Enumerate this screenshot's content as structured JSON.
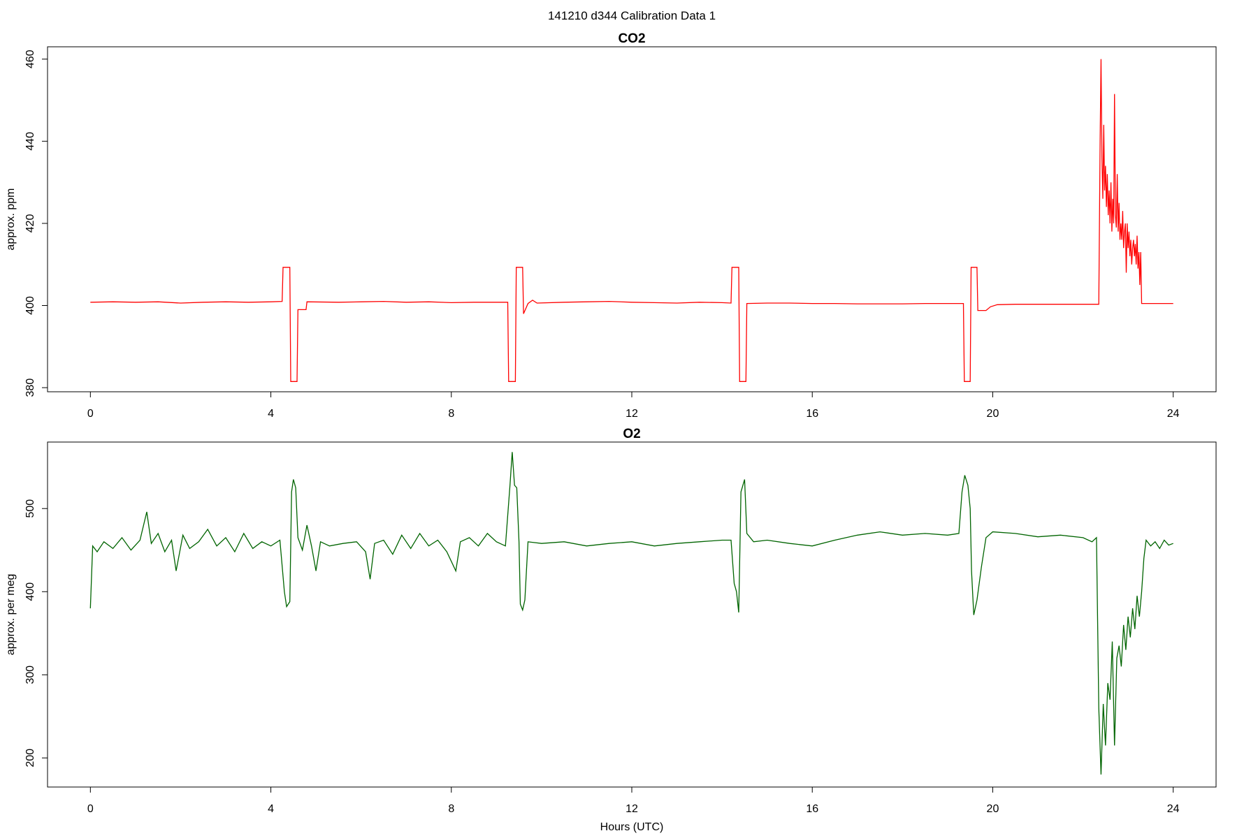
{
  "figure": {
    "suptitle": "141210   d344   Calibration Data 1"
  },
  "chart_data": [
    {
      "type": "line",
      "title": "CO2",
      "xlabel": "",
      "ylabel": "approx. ppm",
      "xlim": [
        -0.95,
        24.95
      ],
      "ylim": [
        379,
        463
      ],
      "xticks": [
        0,
        4,
        8,
        12,
        16,
        20,
        24
      ],
      "yticks": [
        380,
        400,
        420,
        440,
        460
      ],
      "grid": false,
      "color": "#ff0000",
      "series": [
        {
          "points": [
            [
              0.0,
              400.8
            ],
            [
              0.5,
              400.9
            ],
            [
              1.0,
              400.8
            ],
            [
              1.5,
              400.9
            ],
            [
              2.0,
              400.6
            ],
            [
              2.5,
              400.8
            ],
            [
              3.0,
              400.9
            ],
            [
              3.5,
              400.8
            ],
            [
              4.0,
              400.9
            ],
            [
              4.25,
              401.0
            ],
            [
              4.27,
              409.3
            ],
            [
              4.42,
              409.3
            ],
            [
              4.44,
              381.5
            ],
            [
              4.58,
              381.5
            ],
            [
              4.6,
              399.0
            ],
            [
              4.78,
              399.0
            ],
            [
              4.8,
              400.9
            ],
            [
              5.5,
              400.8
            ],
            [
              6.0,
              400.9
            ],
            [
              6.5,
              401.0
            ],
            [
              7.0,
              400.8
            ],
            [
              7.5,
              400.9
            ],
            [
              8.0,
              400.7
            ],
            [
              8.5,
              400.8
            ],
            [
              9.0,
              400.8
            ],
            [
              9.25,
              400.8
            ],
            [
              9.27,
              381.5
            ],
            [
              9.42,
              381.5
            ],
            [
              9.44,
              409.3
            ],
            [
              9.58,
              409.3
            ],
            [
              9.6,
              398.0
            ],
            [
              9.7,
              400.5
            ],
            [
              9.8,
              401.3
            ],
            [
              9.9,
              400.6
            ],
            [
              10.5,
              400.8
            ],
            [
              11.0,
              400.9
            ],
            [
              11.5,
              401.0
            ],
            [
              12.0,
              400.8
            ],
            [
              12.5,
              400.7
            ],
            [
              13.0,
              400.6
            ],
            [
              13.5,
              400.8
            ],
            [
              14.0,
              400.7
            ],
            [
              14.2,
              400.6
            ],
            [
              14.22,
              409.3
            ],
            [
              14.37,
              409.3
            ],
            [
              14.39,
              381.5
            ],
            [
              14.53,
              381.5
            ],
            [
              14.55,
              400.5
            ],
            [
              15.0,
              400.6
            ],
            [
              15.5,
              400.6
            ],
            [
              16.0,
              400.5
            ],
            [
              16.5,
              400.5
            ],
            [
              17.0,
              400.4
            ],
            [
              17.5,
              400.4
            ],
            [
              18.0,
              400.4
            ],
            [
              18.5,
              400.5
            ],
            [
              19.0,
              400.5
            ],
            [
              19.35,
              400.5
            ],
            [
              19.37,
              381.5
            ],
            [
              19.5,
              381.5
            ],
            [
              19.52,
              409.3
            ],
            [
              19.65,
              409.3
            ],
            [
              19.67,
              398.8
            ],
            [
              19.85,
              398.8
            ],
            [
              19.95,
              399.7
            ],
            [
              20.1,
              400.2
            ],
            [
              20.5,
              400.3
            ],
            [
              21.0,
              400.3
            ],
            [
              21.5,
              400.3
            ],
            [
              22.0,
              400.3
            ],
            [
              22.35,
              400.3
            ],
            [
              22.38,
              440.0
            ],
            [
              22.4,
              460.0
            ],
            [
              22.42,
              436.0
            ],
            [
              22.44,
              426.0
            ],
            [
              22.46,
              444.0
            ],
            [
              22.48,
              428.0
            ],
            [
              22.5,
              434.0
            ],
            [
              22.52,
              424.0
            ],
            [
              22.54,
              432.0
            ],
            [
              22.56,
              422.0
            ],
            [
              22.58,
              428.0
            ],
            [
              22.6,
              420.0
            ],
            [
              22.62,
              430.0
            ],
            [
              22.64,
              418.0
            ],
            [
              22.66,
              426.0
            ],
            [
              22.68,
              420.0
            ],
            [
              22.7,
              451.5
            ],
            [
              22.72,
              422.0
            ],
            [
              22.74,
              419.0
            ],
            [
              22.76,
              432.0
            ],
            [
              22.78,
              418.0
            ],
            [
              22.8,
              425.0
            ],
            [
              22.82,
              416.0
            ],
            [
              22.84,
              420.0
            ],
            [
              22.86,
              416.0
            ],
            [
              22.88,
              423.0
            ],
            [
              22.9,
              414.0
            ],
            [
              22.92,
              418.0
            ],
            [
              22.94,
              420.0
            ],
            [
              22.96,
              408.0
            ],
            [
              22.98,
              420.0
            ],
            [
              23.0,
              414.0
            ],
            [
              23.02,
              418.0
            ],
            [
              23.04,
              412.0
            ],
            [
              23.06,
              416.0
            ],
            [
              23.08,
              410.0
            ],
            [
              23.1,
              414.0
            ],
            [
              23.12,
              416.0
            ],
            [
              23.14,
              412.0
            ],
            [
              23.16,
              415.0
            ],
            [
              23.18,
              410.0
            ],
            [
              23.2,
              417.0
            ],
            [
              23.22,
              409.0
            ],
            [
              23.24,
              413.0
            ],
            [
              23.26,
              405.0
            ],
            [
              23.28,
              413.0
            ],
            [
              23.3,
              400.5
            ],
            [
              23.5,
              400.5
            ],
            [
              24.0,
              400.5
            ]
          ]
        }
      ]
    },
    {
      "type": "line",
      "title": "O2",
      "xlabel": "Hours (UTC)",
      "ylabel": "approx. per meg",
      "xlim": [
        -0.95,
        24.95
      ],
      "ylim": [
        165,
        580
      ],
      "xticks": [
        0,
        4,
        8,
        12,
        16,
        20,
        24
      ],
      "yticks": [
        200,
        300,
        400,
        500
      ],
      "grid": false,
      "color": "#006400",
      "series": [
        {
          "points": [
            [
              0.0,
              380
            ],
            [
              0.05,
              455
            ],
            [
              0.15,
              448
            ],
            [
              0.3,
              460
            ],
            [
              0.5,
              452
            ],
            [
              0.7,
              465
            ],
            [
              0.9,
              450
            ],
            [
              1.1,
              462
            ],
            [
              1.25,
              496
            ],
            [
              1.35,
              458
            ],
            [
              1.5,
              470
            ],
            [
              1.65,
              448
            ],
            [
              1.8,
              462
            ],
            [
              1.9,
              425
            ],
            [
              2.05,
              468
            ],
            [
              2.2,
              452
            ],
            [
              2.4,
              460
            ],
            [
              2.6,
              475
            ],
            [
              2.8,
              455
            ],
            [
              3.0,
              465
            ],
            [
              3.2,
              448
            ],
            [
              3.4,
              470
            ],
            [
              3.6,
              452
            ],
            [
              3.8,
              460
            ],
            [
              4.0,
              455
            ],
            [
              4.2,
              462
            ],
            [
              4.3,
              400
            ],
            [
              4.35,
              382
            ],
            [
              4.42,
              388
            ],
            [
              4.46,
              520
            ],
            [
              4.5,
              535
            ],
            [
              4.55,
              525
            ],
            [
              4.6,
              465
            ],
            [
              4.7,
              450
            ],
            [
              4.8,
              480
            ],
            [
              4.9,
              455
            ],
            [
              5.0,
              425
            ],
            [
              5.1,
              460
            ],
            [
              5.3,
              455
            ],
            [
              5.6,
              458
            ],
            [
              5.9,
              460
            ],
            [
              6.1,
              448
            ],
            [
              6.2,
              415
            ],
            [
              6.3,
              458
            ],
            [
              6.5,
              462
            ],
            [
              6.7,
              445
            ],
            [
              6.9,
              468
            ],
            [
              7.1,
              452
            ],
            [
              7.3,
              470
            ],
            [
              7.5,
              455
            ],
            [
              7.7,
              462
            ],
            [
              7.9,
              448
            ],
            [
              8.1,
              425
            ],
            [
              8.2,
              460
            ],
            [
              8.4,
              465
            ],
            [
              8.6,
              455
            ],
            [
              8.8,
              470
            ],
            [
              9.0,
              460
            ],
            [
              9.2,
              455
            ],
            [
              9.3,
              528
            ],
            [
              9.35,
              568
            ],
            [
              9.4,
              528
            ],
            [
              9.45,
              525
            ],
            [
              9.5,
              460
            ],
            [
              9.53,
              385
            ],
            [
              9.58,
              378
            ],
            [
              9.63,
              390
            ],
            [
              9.7,
              460
            ],
            [
              10.0,
              458
            ],
            [
              10.5,
              460
            ],
            [
              11.0,
              455
            ],
            [
              11.5,
              458
            ],
            [
              12.0,
              460
            ],
            [
              12.5,
              455
            ],
            [
              13.0,
              458
            ],
            [
              13.5,
              460
            ],
            [
              14.0,
              462
            ],
            [
              14.2,
              462
            ],
            [
              14.27,
              410
            ],
            [
              14.32,
              400
            ],
            [
              14.37,
              375
            ],
            [
              14.42,
              520
            ],
            [
              14.5,
              535
            ],
            [
              14.55,
              470
            ],
            [
              14.7,
              460
            ],
            [
              15.0,
              462
            ],
            [
              15.5,
              458
            ],
            [
              16.0,
              455
            ],
            [
              16.5,
              462
            ],
            [
              17.0,
              468
            ],
            [
              17.5,
              472
            ],
            [
              18.0,
              468
            ],
            [
              18.5,
              470
            ],
            [
              19.0,
              468
            ],
            [
              19.25,
              470
            ],
            [
              19.32,
              520
            ],
            [
              19.38,
              540
            ],
            [
              19.45,
              528
            ],
            [
              19.5,
              500
            ],
            [
              19.53,
              425
            ],
            [
              19.58,
              372
            ],
            [
              19.65,
              390
            ],
            [
              19.75,
              430
            ],
            [
              19.85,
              465
            ],
            [
              20.0,
              472
            ],
            [
              20.5,
              470
            ],
            [
              21.0,
              466
            ],
            [
              21.5,
              468
            ],
            [
              22.0,
              465
            ],
            [
              22.2,
              460
            ],
            [
              22.3,
              465
            ],
            [
              22.35,
              260
            ],
            [
              22.4,
              180
            ],
            [
              22.45,
              265
            ],
            [
              22.5,
              215
            ],
            [
              22.55,
              290
            ],
            [
              22.6,
              270
            ],
            [
              22.65,
              340
            ],
            [
              22.7,
              215
            ],
            [
              22.75,
              320
            ],
            [
              22.8,
              335
            ],
            [
              22.85,
              310
            ],
            [
              22.9,
              360
            ],
            [
              22.95,
              330
            ],
            [
              23.0,
              370
            ],
            [
              23.05,
              345
            ],
            [
              23.1,
              380
            ],
            [
              23.15,
              355
            ],
            [
              23.2,
              395
            ],
            [
              23.25,
              370
            ],
            [
              23.3,
              400
            ],
            [
              23.35,
              440
            ],
            [
              23.4,
              462
            ],
            [
              23.5,
              455
            ],
            [
              23.6,
              460
            ],
            [
              23.7,
              452
            ],
            [
              23.8,
              462
            ],
            [
              23.9,
              456
            ],
            [
              24.0,
              458
            ]
          ]
        }
      ]
    }
  ]
}
